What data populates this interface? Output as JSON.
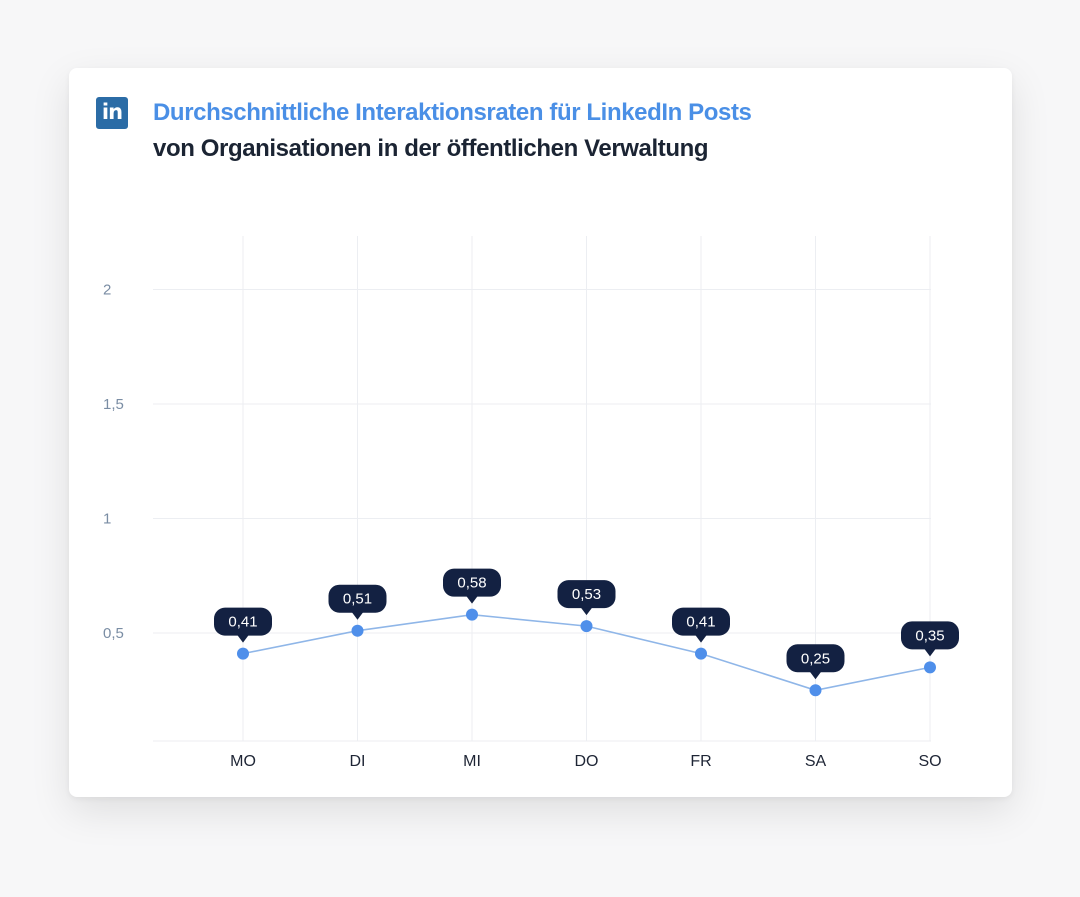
{
  "header": {
    "logo_text": "in",
    "title": "Durchschnittliche Interaktionsraten für LinkedIn Posts",
    "subtitle": "von Organisationen in der öffentlichen Verwaltung"
  },
  "colors": {
    "line": "#8fb6e8",
    "point": "#4f8fea",
    "label_bg": "#132142",
    "grid": "#eceef2",
    "title": "#4a8fe6",
    "logo": "#2b6ca6"
  },
  "chart_data": {
    "type": "line",
    "title": "Durchschnittliche Interaktionsraten für LinkedIn Posts",
    "subtitle": "von Organisationen in der öffentlichen Verwaltung",
    "categories": [
      "MO",
      "DI",
      "MI",
      "DO",
      "FR",
      "SA",
      "SO"
    ],
    "values": [
      0.41,
      0.51,
      0.58,
      0.53,
      0.41,
      0.25,
      0.35
    ],
    "value_labels": [
      "0,41",
      "0,51",
      "0,58",
      "0,53",
      "0,41",
      "0,25",
      "0,35"
    ],
    "y_ticks": [
      0.5,
      1,
      1.5,
      2
    ],
    "y_tick_labels": [
      "0,5",
      "1",
      "1,5",
      "2"
    ],
    "ylim": [
      0,
      2.2
    ],
    "xlabel": "",
    "ylabel": "",
    "grid": true,
    "legend": "none"
  }
}
